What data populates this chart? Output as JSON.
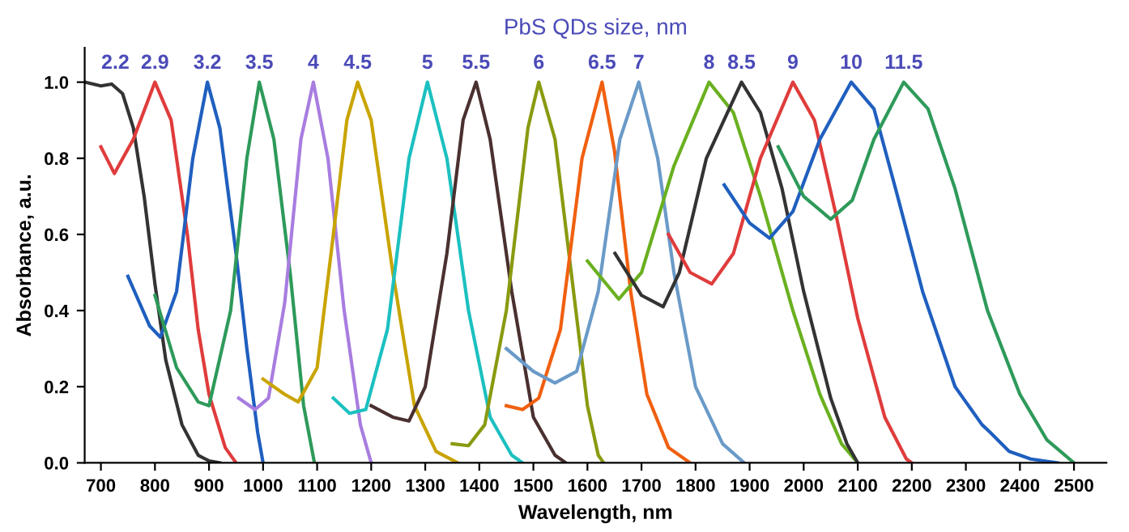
{
  "chart_data": {
    "type": "line",
    "title": "PbS QDs size, nm",
    "xlabel": "Wavelength, nm",
    "ylabel": "Absorbance, a.u.",
    "xlim": [
      670,
      2560
    ],
    "ylim": [
      0,
      1.09
    ],
    "xticks": [
      700,
      800,
      900,
      1000,
      1100,
      1200,
      1300,
      1400,
      1500,
      1600,
      1700,
      1800,
      1900,
      2000,
      2100,
      2200,
      2300,
      2400,
      2500
    ],
    "yticks": [
      {
        "value": 0,
        "label": "0.0"
      },
      {
        "value": 0.2,
        "label": "0.2"
      },
      {
        "value": 0.4,
        "label": "0.4"
      },
      {
        "value": 0.6,
        "label": "0.6"
      },
      {
        "value": 0.8,
        "label": "0.8"
      },
      {
        "value": 1,
        "label": "1.0"
      }
    ],
    "grid": false,
    "legend": false,
    "marker": "none",
    "line_style": "solid",
    "series": [
      {
        "name": "2.2",
        "color": "#333333",
        "x": [
          670,
          700,
          720,
          740,
          760,
          780,
          800,
          820,
          850,
          880,
          900,
          920
        ],
        "values": [
          1.0,
          0.99,
          0.995,
          0.97,
          0.88,
          0.7,
          0.47,
          0.27,
          0.1,
          0.02,
          0.005,
          0
        ]
      },
      {
        "name": "2.9",
        "color": "#e03c3c",
        "x": [
          700,
          725,
          760,
          800,
          830,
          860,
          880,
          900,
          930,
          950
        ],
        "values": [
          0.83,
          0.76,
          0.85,
          1.0,
          0.9,
          0.6,
          0.35,
          0.18,
          0.04,
          0
        ]
      },
      {
        "name": "3.2",
        "color": "#1f5fbf",
        "x": [
          750,
          790,
          810,
          840,
          870,
          897,
          920,
          950,
          970,
          990,
          1000
        ],
        "values": [
          0.49,
          0.36,
          0.33,
          0.45,
          0.8,
          1.0,
          0.88,
          0.55,
          0.3,
          0.08,
          0
        ]
      },
      {
        "name": "3.5",
        "color": "#2e9a5a",
        "x": [
          800,
          840,
          880,
          900,
          940,
          970,
          993,
          1020,
          1050,
          1075,
          1095
        ],
        "values": [
          0.44,
          0.25,
          0.16,
          0.15,
          0.4,
          0.8,
          1.0,
          0.85,
          0.5,
          0.15,
          0
        ]
      },
      {
        "name": "4",
        "color": "#a87de0",
        "x": [
          955,
          985,
          1010,
          1040,
          1070,
          1093,
          1120,
          1150,
          1180,
          1200
        ],
        "values": [
          0.17,
          0.14,
          0.17,
          0.42,
          0.85,
          1.0,
          0.8,
          0.4,
          0.1,
          0
        ]
      },
      {
        "name": "4.5",
        "color": "#c9a400",
        "x": [
          1000,
          1040,
          1065,
          1100,
          1130,
          1155,
          1175,
          1200,
          1240,
          1280,
          1320,
          1360
        ],
        "values": [
          0.22,
          0.18,
          0.16,
          0.25,
          0.6,
          0.9,
          1.0,
          0.9,
          0.5,
          0.15,
          0.03,
          0
        ]
      },
      {
        "name": "5",
        "color": "#1cc0c0",
        "x": [
          1130,
          1160,
          1190,
          1230,
          1270,
          1304,
          1340,
          1380,
          1420,
          1460,
          1480
        ],
        "values": [
          0.17,
          0.13,
          0.14,
          0.35,
          0.8,
          1.0,
          0.8,
          0.4,
          0.12,
          0.02,
          0
        ]
      },
      {
        "name": "5.5",
        "color": "#4a3030",
        "x": [
          1200,
          1240,
          1270,
          1300,
          1340,
          1370,
          1394,
          1420,
          1460,
          1500,
          1540,
          1560
        ],
        "values": [
          0.15,
          0.12,
          0.11,
          0.2,
          0.55,
          0.9,
          1.0,
          0.85,
          0.45,
          0.12,
          0.02,
          0
        ]
      },
      {
        "name": "6",
        "color": "#8a9a10",
        "x": [
          1350,
          1380,
          1410,
          1450,
          1490,
          1510,
          1540,
          1570,
          1600,
          1620,
          1630
        ],
        "values": [
          0.05,
          0.045,
          0.1,
          0.4,
          0.88,
          1.0,
          0.85,
          0.5,
          0.15,
          0.02,
          0
        ]
      },
      {
        "name": "6.5",
        "color": "#f06010",
        "x": [
          1450,
          1480,
          1510,
          1550,
          1590,
          1627,
          1650,
          1680,
          1710,
          1750,
          1790
        ],
        "values": [
          0.15,
          0.14,
          0.17,
          0.35,
          0.8,
          1.0,
          0.82,
          0.45,
          0.18,
          0.04,
          0
        ]
      },
      {
        "name": "7",
        "color": "#6a9ac8",
        "x": [
          1450,
          1500,
          1540,
          1580,
          1620,
          1660,
          1695,
          1730,
          1760,
          1800,
          1850,
          1890
        ],
        "values": [
          0.3,
          0.24,
          0.21,
          0.24,
          0.45,
          0.85,
          1.0,
          0.8,
          0.5,
          0.2,
          0.05,
          0
        ]
      },
      {
        "name": "8",
        "color": "#6ab020",
        "x": [
          1600,
          1658,
          1700,
          1760,
          1825,
          1870,
          1920,
          1980,
          2030,
          2070,
          2100
        ],
        "values": [
          0.53,
          0.43,
          0.5,
          0.78,
          1.0,
          0.92,
          0.7,
          0.4,
          0.18,
          0.05,
          0
        ]
      },
      {
        "name": "8.5",
        "color": "#333333",
        "x": [
          1651,
          1700,
          1740,
          1770,
          1820,
          1885,
          1920,
          1960,
          2000,
          2050,
          2080,
          2100
        ],
        "values": [
          0.55,
          0.44,
          0.41,
          0.5,
          0.8,
          1.0,
          0.92,
          0.72,
          0.45,
          0.17,
          0.05,
          0
        ]
      },
      {
        "name": "9",
        "color": "#e03c3c",
        "x": [
          1750,
          1790,
          1830,
          1870,
          1920,
          1980,
          2020,
          2060,
          2100,
          2150,
          2190,
          2200
        ],
        "values": [
          0.6,
          0.5,
          0.47,
          0.55,
          0.8,
          1.0,
          0.9,
          0.65,
          0.38,
          0.12,
          0.01,
          0
        ]
      },
      {
        "name": "10",
        "color": "#1f5fbf",
        "x": [
          1853,
          1900,
          1937,
          1980,
          2030,
          2088,
          2130,
          2170,
          2220,
          2280,
          2300,
          2310,
          2330,
          2345,
          2380,
          2420,
          2470
        ],
        "values": [
          0.73,
          0.63,
          0.59,
          0.66,
          0.85,
          1.0,
          0.93,
          0.72,
          0.45,
          0.2,
          0.16,
          0.14,
          0.1,
          0.08,
          0.03,
          0.01,
          0
        ]
      },
      {
        "name": "11.5",
        "color": "#2e9a5a",
        "x": [
          1953,
          2000,
          2050,
          2090,
          2130,
          2185,
          2230,
          2280,
          2340,
          2400,
          2450,
          2500
        ],
        "values": [
          0.83,
          0.7,
          0.64,
          0.69,
          0.85,
          1.0,
          0.93,
          0.72,
          0.4,
          0.18,
          0.06,
          0
        ]
      }
    ]
  }
}
